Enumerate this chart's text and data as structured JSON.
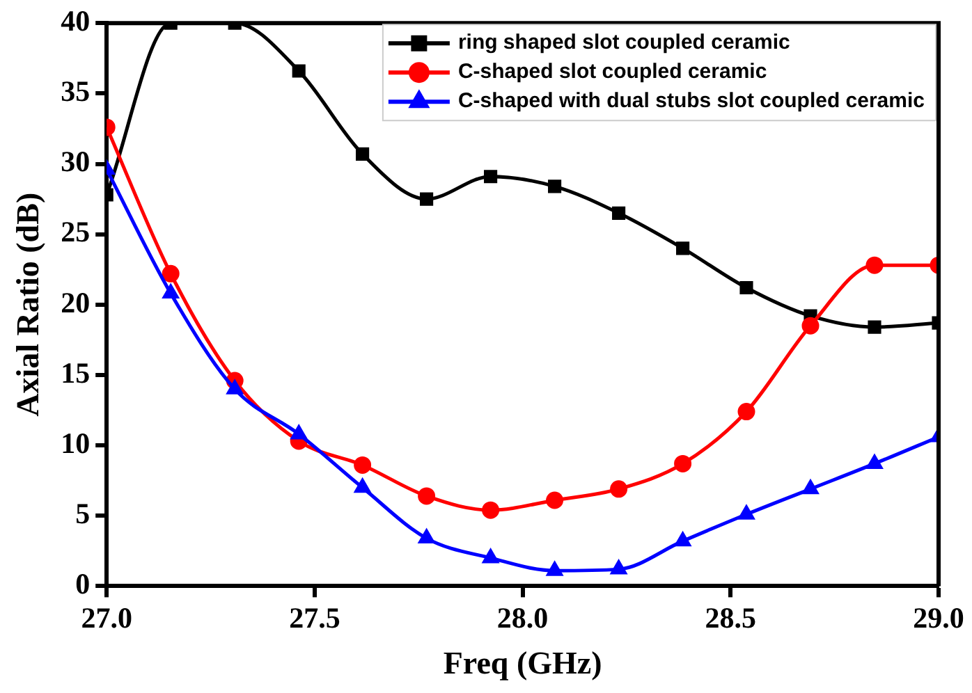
{
  "chart_data": {
    "type": "line",
    "xlabel": "Freq (GHz)",
    "ylabel": "Axial Ratio (dB)",
    "x": [
      27,
      27.154,
      27.308,
      27.462,
      27.615,
      27.769,
      27.923,
      28.077,
      28.231,
      28.385,
      28.538,
      28.692,
      28.846,
      29
    ],
    "series": [
      {
        "name": "ring shaped slot coupled ceramic",
        "color": "#000000",
        "marker": "square",
        "values": [
          27.8,
          40,
          40,
          36.6,
          30.7,
          27.5,
          29.1,
          28.4,
          26.5,
          24.0,
          21.2,
          19.2,
          18.4,
          18.7
        ]
      },
      {
        "name": "C-shaped slot coupled ceramic",
        "color": "#ff0000",
        "marker": "circle",
        "values": [
          32.6,
          22.2,
          14.6,
          10.3,
          8.6,
          6.4,
          5.4,
          6.1,
          6.9,
          8.7,
          12.4,
          18.5,
          22.8,
          22.8
        ]
      },
      {
        "name": "C-shaped with dual stubs slot coupled ceramic",
        "color": "#0000ff",
        "marker": "triangle",
        "values": [
          29.6,
          20.8,
          14.0,
          10.8,
          7.0,
          3.4,
          2.0,
          1.1,
          1.2,
          3.2,
          5.1,
          6.9,
          8.7,
          10.6
        ]
      }
    ],
    "xlim": [
      27,
      29
    ],
    "xticks": [
      {
        "value": 27,
        "label": "27.0"
      },
      {
        "value": 27.5,
        "label": "27.5"
      },
      {
        "value": 28,
        "label": "28.0"
      },
      {
        "value": 28.5,
        "label": "28.5"
      },
      {
        "value": 29,
        "label": "29.0"
      }
    ],
    "ylim": [
      0,
      40
    ],
    "yticks": [
      0,
      5,
      10,
      15,
      20,
      25,
      30,
      35,
      40
    ],
    "grid": false,
    "legend": "top right",
    "line_style": "solid"
  }
}
